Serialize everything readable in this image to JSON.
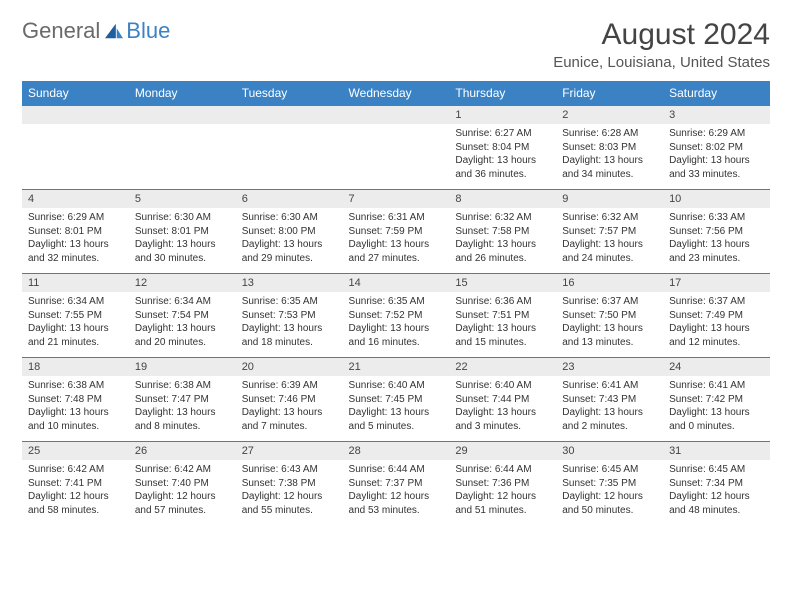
{
  "brand": {
    "part1": "General",
    "part2": "Blue"
  },
  "title": "August 2024",
  "location": "Eunice, Louisiana, United States",
  "colors": {
    "header_bg": "#3b82c4",
    "header_text": "#ffffff",
    "daynum_bg": "#ececec",
    "rule": "#3b82c4",
    "logo_gray": "#6a6a6a",
    "logo_blue": "#3b82c4"
  },
  "weekdays": [
    "Sunday",
    "Monday",
    "Tuesday",
    "Wednesday",
    "Thursday",
    "Friday",
    "Saturday"
  ],
  "weeks": [
    [
      {
        "n": "",
        "lines": []
      },
      {
        "n": "",
        "lines": []
      },
      {
        "n": "",
        "lines": []
      },
      {
        "n": "",
        "lines": []
      },
      {
        "n": "1",
        "lines": [
          "Sunrise: 6:27 AM",
          "Sunset: 8:04 PM",
          "Daylight: 13 hours and 36 minutes."
        ]
      },
      {
        "n": "2",
        "lines": [
          "Sunrise: 6:28 AM",
          "Sunset: 8:03 PM",
          "Daylight: 13 hours and 34 minutes."
        ]
      },
      {
        "n": "3",
        "lines": [
          "Sunrise: 6:29 AM",
          "Sunset: 8:02 PM",
          "Daylight: 13 hours and 33 minutes."
        ]
      }
    ],
    [
      {
        "n": "4",
        "lines": [
          "Sunrise: 6:29 AM",
          "Sunset: 8:01 PM",
          "Daylight: 13 hours and 32 minutes."
        ]
      },
      {
        "n": "5",
        "lines": [
          "Sunrise: 6:30 AM",
          "Sunset: 8:01 PM",
          "Daylight: 13 hours and 30 minutes."
        ]
      },
      {
        "n": "6",
        "lines": [
          "Sunrise: 6:30 AM",
          "Sunset: 8:00 PM",
          "Daylight: 13 hours and 29 minutes."
        ]
      },
      {
        "n": "7",
        "lines": [
          "Sunrise: 6:31 AM",
          "Sunset: 7:59 PM",
          "Daylight: 13 hours and 27 minutes."
        ]
      },
      {
        "n": "8",
        "lines": [
          "Sunrise: 6:32 AM",
          "Sunset: 7:58 PM",
          "Daylight: 13 hours and 26 minutes."
        ]
      },
      {
        "n": "9",
        "lines": [
          "Sunrise: 6:32 AM",
          "Sunset: 7:57 PM",
          "Daylight: 13 hours and 24 minutes."
        ]
      },
      {
        "n": "10",
        "lines": [
          "Sunrise: 6:33 AM",
          "Sunset: 7:56 PM",
          "Daylight: 13 hours and 23 minutes."
        ]
      }
    ],
    [
      {
        "n": "11",
        "lines": [
          "Sunrise: 6:34 AM",
          "Sunset: 7:55 PM",
          "Daylight: 13 hours and 21 minutes."
        ]
      },
      {
        "n": "12",
        "lines": [
          "Sunrise: 6:34 AM",
          "Sunset: 7:54 PM",
          "Daylight: 13 hours and 20 minutes."
        ]
      },
      {
        "n": "13",
        "lines": [
          "Sunrise: 6:35 AM",
          "Sunset: 7:53 PM",
          "Daylight: 13 hours and 18 minutes."
        ]
      },
      {
        "n": "14",
        "lines": [
          "Sunrise: 6:35 AM",
          "Sunset: 7:52 PM",
          "Daylight: 13 hours and 16 minutes."
        ]
      },
      {
        "n": "15",
        "lines": [
          "Sunrise: 6:36 AM",
          "Sunset: 7:51 PM",
          "Daylight: 13 hours and 15 minutes."
        ]
      },
      {
        "n": "16",
        "lines": [
          "Sunrise: 6:37 AM",
          "Sunset: 7:50 PM",
          "Daylight: 13 hours and 13 minutes."
        ]
      },
      {
        "n": "17",
        "lines": [
          "Sunrise: 6:37 AM",
          "Sunset: 7:49 PM",
          "Daylight: 13 hours and 12 minutes."
        ]
      }
    ],
    [
      {
        "n": "18",
        "lines": [
          "Sunrise: 6:38 AM",
          "Sunset: 7:48 PM",
          "Daylight: 13 hours and 10 minutes."
        ]
      },
      {
        "n": "19",
        "lines": [
          "Sunrise: 6:38 AM",
          "Sunset: 7:47 PM",
          "Daylight: 13 hours and 8 minutes."
        ]
      },
      {
        "n": "20",
        "lines": [
          "Sunrise: 6:39 AM",
          "Sunset: 7:46 PM",
          "Daylight: 13 hours and 7 minutes."
        ]
      },
      {
        "n": "21",
        "lines": [
          "Sunrise: 6:40 AM",
          "Sunset: 7:45 PM",
          "Daylight: 13 hours and 5 minutes."
        ]
      },
      {
        "n": "22",
        "lines": [
          "Sunrise: 6:40 AM",
          "Sunset: 7:44 PM",
          "Daylight: 13 hours and 3 minutes."
        ]
      },
      {
        "n": "23",
        "lines": [
          "Sunrise: 6:41 AM",
          "Sunset: 7:43 PM",
          "Daylight: 13 hours and 2 minutes."
        ]
      },
      {
        "n": "24",
        "lines": [
          "Sunrise: 6:41 AM",
          "Sunset: 7:42 PM",
          "Daylight: 13 hours and 0 minutes."
        ]
      }
    ],
    [
      {
        "n": "25",
        "lines": [
          "Sunrise: 6:42 AM",
          "Sunset: 7:41 PM",
          "Daylight: 12 hours and 58 minutes."
        ]
      },
      {
        "n": "26",
        "lines": [
          "Sunrise: 6:42 AM",
          "Sunset: 7:40 PM",
          "Daylight: 12 hours and 57 minutes."
        ]
      },
      {
        "n": "27",
        "lines": [
          "Sunrise: 6:43 AM",
          "Sunset: 7:38 PM",
          "Daylight: 12 hours and 55 minutes."
        ]
      },
      {
        "n": "28",
        "lines": [
          "Sunrise: 6:44 AM",
          "Sunset: 7:37 PM",
          "Daylight: 12 hours and 53 minutes."
        ]
      },
      {
        "n": "29",
        "lines": [
          "Sunrise: 6:44 AM",
          "Sunset: 7:36 PM",
          "Daylight: 12 hours and 51 minutes."
        ]
      },
      {
        "n": "30",
        "lines": [
          "Sunrise: 6:45 AM",
          "Sunset: 7:35 PM",
          "Daylight: 12 hours and 50 minutes."
        ]
      },
      {
        "n": "31",
        "lines": [
          "Sunrise: 6:45 AM",
          "Sunset: 7:34 PM",
          "Daylight: 12 hours and 48 minutes."
        ]
      }
    ]
  ]
}
